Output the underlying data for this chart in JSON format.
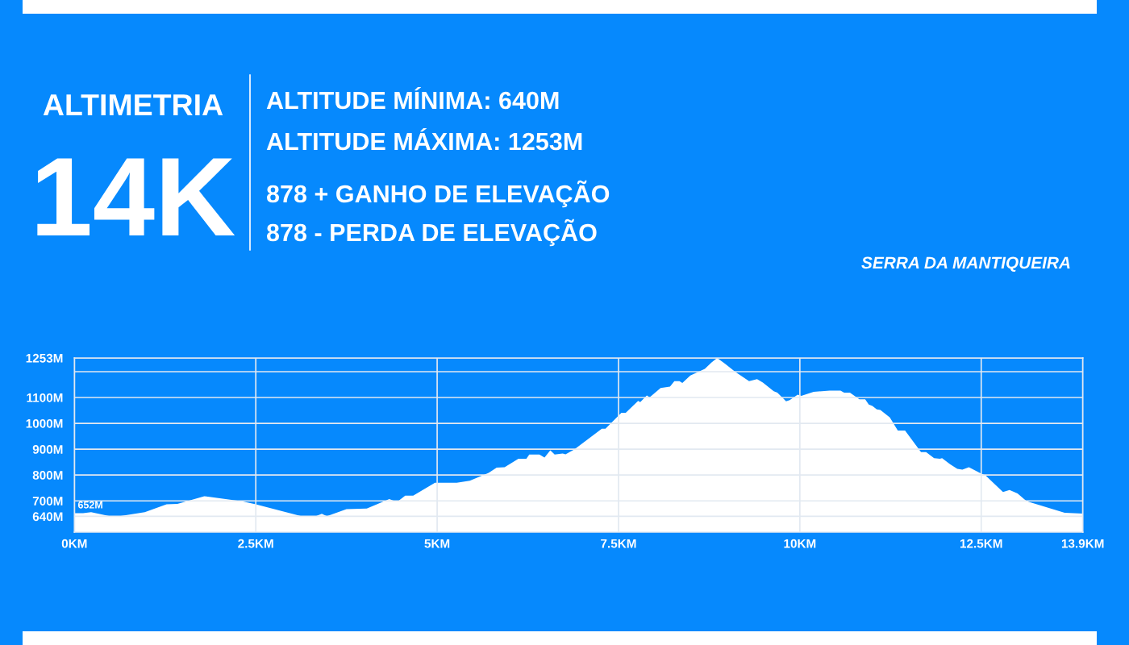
{
  "chart_data": {
    "type": "area",
    "title": "ALTIMETRIA",
    "subtitle": "14K",
    "annotations": [
      "ALTITUDE MÍNIMA: 640M",
      "ALTITUDE MÁXIMA: 1253M",
      "878 + GANHO DE ELEVAÇÃO",
      "878 - PERDA DE ELEVAÇÃO",
      "SERRA DA MANTIQUEIRA",
      {
        "text": "652M",
        "x": 0,
        "y": 652
      }
    ],
    "x": [
      0,
      0.12,
      0.23,
      0.49,
      0.62,
      0.97,
      1.27,
      1.42,
      1.79,
      2.31,
      2.5,
      3.14,
      3.32,
      3.41,
      3.48,
      3.75,
      4.03,
      4.34,
      4.4,
      4.47,
      4.56,
      4.67,
      4.97,
      5.27,
      5.45,
      5.71,
      5.82,
      5.93,
      6.12,
      6.23,
      6.27,
      6.41,
      6.48,
      6.56,
      6.62,
      6.73,
      6.77,
      6.89,
      7.27,
      7.32,
      7.54,
      7.6,
      7.77,
      7.8,
      7.89,
      7.93,
      8.08,
      8.21,
      8.27,
      8.34,
      8.38,
      8.49,
      8.69,
      8.78,
      8.86,
      8.97,
      9.11,
      9.3,
      9.41,
      9.49,
      9.64,
      9.69,
      9.81,
      9.86,
      9.97,
      10.02,
      10.19,
      10.41,
      10.56,
      10.61,
      10.69,
      10.82,
      10.9,
      10.95,
      11.0,
      11.06,
      11.11,
      11.24,
      11.35,
      11.45,
      11.67,
      11.74,
      11.85,
      11.93,
      11.96,
      12.07,
      12.17,
      12.24,
      12.33,
      12.48,
      12.56,
      12.8,
      12.89,
      13.0,
      13.13,
      13.65,
      13.9
    ],
    "series": [
      {
        "color": "#ffffff",
        "values": [
          652,
          652,
          656,
          641,
          641,
          656,
          687,
          688,
          718,
          698,
          687,
          640,
          640,
          650,
          641,
          668,
          670,
          707,
          701,
          701,
          720,
          720,
          770,
          770,
          778,
          808,
          829,
          830,
          863,
          863,
          879,
          879,
          868,
          896,
          879,
          883,
          880,
          899,
          979,
          979,
          1041,
          1041,
          1087,
          1082,
          1108,
          1101,
          1137,
          1142,
          1163,
          1163,
          1156,
          1185,
          1211,
          1235,
          1253,
          1230,
          1199,
          1163,
          1171,
          1158,
          1124,
          1119,
          1085,
          1090,
          1111,
          1106,
          1122,
          1127,
          1127,
          1119,
          1119,
          1093,
          1093,
          1073,
          1067,
          1054,
          1052,
          1023,
          972,
          972,
          889,
          889,
          865,
          863,
          865,
          842,
          824,
          821,
          830,
          808,
          798,
          734,
          742,
          729,
          698,
          654,
          651
        ]
      }
    ],
    "xlim": [
      0,
      13.9
    ],
    "xticks": [
      {
        "value": 0,
        "label": "0KM"
      },
      {
        "value": 2.5,
        "label": "2.5KM"
      },
      {
        "value": 5,
        "label": "5KM"
      },
      {
        "value": 7.5,
        "label": "7.5KM"
      },
      {
        "value": 10,
        "label": "10KM"
      },
      {
        "value": 12.5,
        "label": "12.5KM"
      },
      {
        "value": 13.9,
        "label": "13.9KM"
      }
    ],
    "ylim": [
      579,
      1253
    ],
    "yticks": [
      {
        "value": 640,
        "label": "640M"
      },
      {
        "value": 700,
        "label": "700M"
      },
      {
        "value": 800,
        "label": "800M"
      },
      {
        "value": 900,
        "label": "900M"
      },
      {
        "value": 1000,
        "label": "1000M"
      },
      {
        "value": 1100,
        "label": "1100M"
      },
      {
        "value": 1200,
        "label": null
      },
      {
        "value": 1253,
        "label": "1253M"
      }
    ],
    "grid": true
  }
}
